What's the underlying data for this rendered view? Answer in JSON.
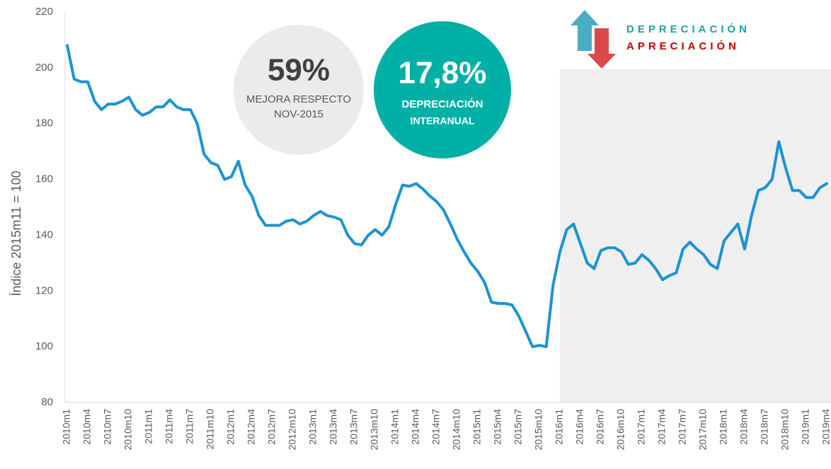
{
  "chart_data": {
    "type": "line",
    "y_label": "Índice 2015m11 = 100",
    "categories": [
      "2010m1",
      null,
      null,
      "2010m4",
      null,
      null,
      "2010m7",
      null,
      null,
      "2010m10",
      null,
      null,
      "2011m1",
      null,
      null,
      "2011m4",
      null,
      null,
      "2011m7",
      null,
      null,
      "2011m10",
      null,
      null,
      "2012m1",
      null,
      null,
      "2012m4",
      null,
      null,
      "2012m7",
      null,
      null,
      "2012m10",
      null,
      null,
      "2013m1",
      null,
      null,
      "2013m4",
      null,
      null,
      "2013m7",
      null,
      null,
      "2013m10",
      null,
      null,
      "2014m1",
      null,
      null,
      "2014m4",
      null,
      null,
      "2014m7",
      null,
      null,
      "2014m10",
      null,
      null,
      "2015m1",
      null,
      null,
      "2015m4",
      null,
      null,
      "2015m7",
      null,
      null,
      "2015m10",
      null,
      null,
      "2016m1",
      null,
      null,
      "2016m4",
      null,
      null,
      "2016m7",
      null,
      null,
      "2016m10",
      null,
      null,
      "2017m1",
      null,
      null,
      "2017m4",
      null,
      null,
      "2017m7",
      null,
      null,
      "2017m10",
      null,
      null,
      "2018m1",
      null,
      null,
      "2018m4",
      null,
      null,
      "2018m7",
      null,
      null,
      "2018m10",
      null,
      null,
      "2019m1",
      null,
      null,
      "2019m4"
    ],
    "values": [
      208,
      196,
      195,
      195,
      188,
      185,
      187,
      187,
      188,
      189.5,
      185,
      183,
      184,
      186,
      186,
      188.5,
      186,
      185,
      185,
      180,
      169,
      166,
      165,
      160,
      161,
      166.5,
      158,
      154,
      147,
      143.5,
      143.5,
      143.5,
      145,
      145.5,
      144,
      145,
      147,
      148.5,
      147,
      146.5,
      145.5,
      140,
      137,
      136.5,
      140,
      142,
      140,
      143,
      151,
      158,
      157.5,
      158.5,
      156.5,
      154,
      152,
      149,
      144,
      138.5,
      134,
      130,
      127,
      123,
      116,
      115.5,
      115.5,
      115,
      111,
      105.5,
      100,
      100.5,
      100,
      122,
      134,
      142,
      144,
      137,
      130,
      128,
      134.5,
      135.5,
      135.5,
      134,
      129.5,
      130,
      133,
      131,
      128,
      124,
      125.5,
      126.5,
      135,
      137.5,
      135,
      133,
      129.5,
      128,
      138,
      141,
      144,
      135,
      147,
      156,
      157,
      160,
      173.5,
      164,
      156,
      156,
      153.5,
      153.5,
      157,
      158.5
    ],
    "color": "#1b93d3",
    "ylim": [
      80,
      220
    ],
    "yticks": [
      80,
      100,
      120,
      140,
      160,
      180,
      200,
      220
    ],
    "callouts": [
      {
        "headline": "59%",
        "lines": [
          "MEJORA RESPECTO",
          "NOV-2015"
        ]
      },
      {
        "headline": "17,8%",
        "lines": [
          "DEPRECIACIÓN",
          "INTERANUAL"
        ]
      }
    ],
    "legend_labels": [
      {
        "text": "DEPRECIACIÓN",
        "color": "#1aa3a8"
      },
      {
        "text": "APRECIACIÓN",
        "color": "#c00000"
      }
    ]
  }
}
